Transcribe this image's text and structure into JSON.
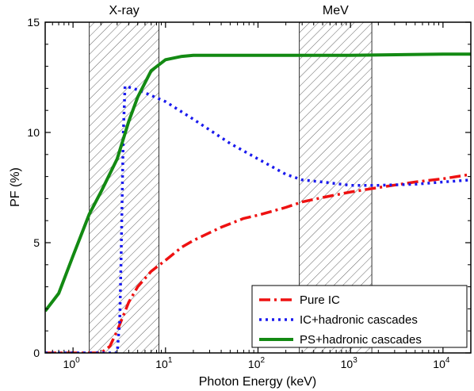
{
  "chart_data": {
    "type": "line",
    "title": "",
    "xlabel": "Photon Energy (keV)",
    "ylabel": "PF (%)",
    "xscale": "log",
    "xlim": [
      0.5,
      20000
    ],
    "ylim": [
      0,
      15
    ],
    "x_ticks": [
      {
        "value": 1,
        "mantissa": "10",
        "exp": "0"
      },
      {
        "value": 10,
        "mantissa": "10",
        "exp": "1"
      },
      {
        "value": 100,
        "mantissa": "10",
        "exp": "2"
      },
      {
        "value": 1000,
        "mantissa": "10",
        "exp": "3"
      },
      {
        "value": 10000,
        "mantissa": "10",
        "exp": "4"
      }
    ],
    "y_ticks": [
      {
        "value": 0,
        "label": "0"
      },
      {
        "value": 5,
        "label": "5"
      },
      {
        "value": 10,
        "label": "10"
      },
      {
        "value": 15,
        "label": "15"
      }
    ],
    "bands": [
      {
        "label": "X-ray",
        "x_range": [
          1.5,
          8.5
        ]
      },
      {
        "label": "MeV",
        "x_range": [
          280,
          1700
        ]
      }
    ],
    "legend_position": "bottom-right",
    "grid": false,
    "series": [
      {
        "name": "Pure IC",
        "color": "#ee1111",
        "style": "dash-dot",
        "points": [
          [
            0.5,
            0
          ],
          [
            2.0,
            0
          ],
          [
            2.5,
            0.3
          ],
          [
            3,
            1.0
          ],
          [
            4,
            2.3
          ],
          [
            5,
            3.0
          ],
          [
            7,
            3.7
          ],
          [
            10,
            4.2
          ],
          [
            15,
            4.8
          ],
          [
            20,
            5.1
          ],
          [
            40,
            5.7
          ],
          [
            70,
            6.1
          ],
          [
            100,
            6.25
          ],
          [
            200,
            6.6
          ],
          [
            300,
            6.85
          ],
          [
            500,
            7.05
          ],
          [
            1000,
            7.3
          ],
          [
            2000,
            7.5
          ],
          [
            5000,
            7.75
          ],
          [
            10000,
            7.9
          ],
          [
            20000,
            8.1
          ]
        ]
      },
      {
        "name": "IC+hadronic cascades",
        "color": "#1a1aee",
        "style": "dotted",
        "points": [
          [
            0.5,
            0
          ],
          [
            3.0,
            0
          ],
          [
            3.2,
            1.5
          ],
          [
            3.3,
            4.0
          ],
          [
            3.4,
            7.0
          ],
          [
            3.5,
            10.0
          ],
          [
            3.65,
            12.1
          ],
          [
            4.5,
            12.0
          ],
          [
            6,
            11.8
          ],
          [
            10,
            11.4
          ],
          [
            20,
            10.6
          ],
          [
            50,
            9.5
          ],
          [
            100,
            8.8
          ],
          [
            200,
            8.1
          ],
          [
            300,
            7.85
          ],
          [
            500,
            7.75
          ],
          [
            1000,
            7.6
          ],
          [
            2000,
            7.6
          ],
          [
            5000,
            7.65
          ],
          [
            10000,
            7.75
          ],
          [
            20000,
            7.85
          ]
        ]
      },
      {
        "name": "PS+hadronic cascades",
        "color": "#138a13",
        "style": "solid",
        "points": [
          [
            0.5,
            1.9
          ],
          [
            0.7,
            2.7
          ],
          [
            1.0,
            4.4
          ],
          [
            1.5,
            6.3
          ],
          [
            2.0,
            7.3
          ],
          [
            3.0,
            8.8
          ],
          [
            4.0,
            10.5
          ],
          [
            5.0,
            11.6
          ],
          [
            7.0,
            12.8
          ],
          [
            10.0,
            13.3
          ],
          [
            15,
            13.45
          ],
          [
            20,
            13.5
          ],
          [
            100,
            13.5
          ],
          [
            1000,
            13.5
          ],
          [
            10000,
            13.55
          ],
          [
            20000,
            13.55
          ]
        ]
      }
    ]
  }
}
